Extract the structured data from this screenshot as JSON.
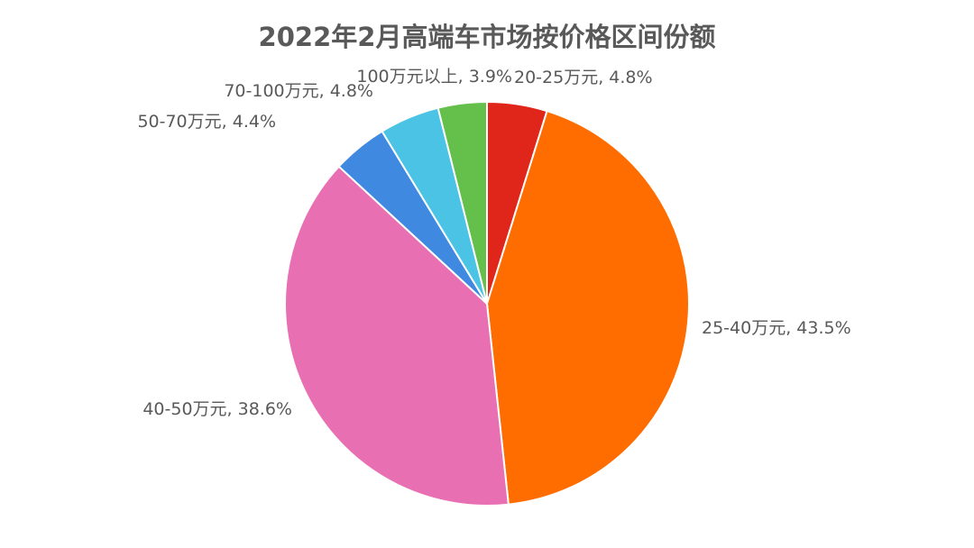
{
  "chart_data": {
    "type": "pie",
    "title": "2022年2月高端车市场按价格区间份额",
    "start_angle": "12 o'clock",
    "direction": "clockwise",
    "slices": [
      {
        "label": "20-25万元",
        "value": 4.8,
        "display": "20-25万元, 4.8%",
        "color": "#e0251b"
      },
      {
        "label": "25-40万元",
        "value": 43.5,
        "display": "25-40万元, 43.5%",
        "color": "#ff6d00"
      },
      {
        "label": "40-50万元",
        "value": 38.6,
        "display": "40-50万元, 38.6%",
        "color": "#e96fb3"
      },
      {
        "label": "50-70万元",
        "value": 4.4,
        "display": "50-70万元, 4.4%",
        "color": "#3f8ae0"
      },
      {
        "label": "70-100万元",
        "value": 4.8,
        "display": "70-100万元, 4.8%",
        "color": "#4bc3e4"
      },
      {
        "label": "100万元以上",
        "value": 3.9,
        "display": "100万元以上, 3.9%",
        "color": "#65bf4b"
      }
    ]
  }
}
